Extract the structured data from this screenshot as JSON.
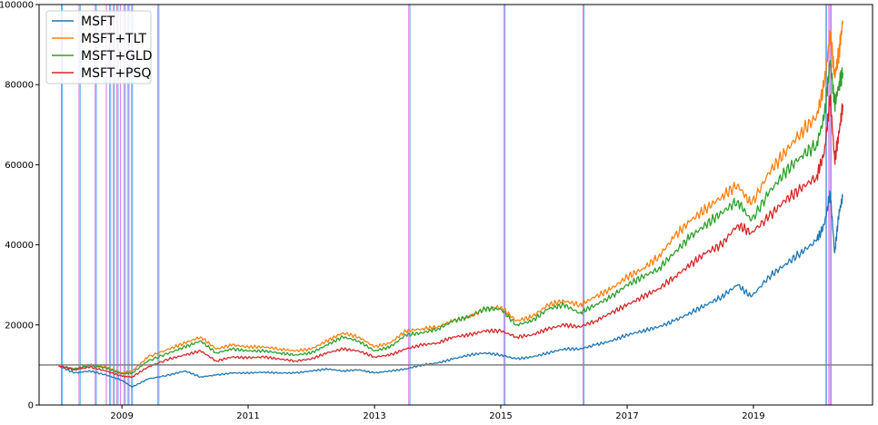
{
  "chart_data": {
    "type": "line",
    "title": "",
    "xlabel": "",
    "ylabel": "",
    "xlim": [
      "2007-09-10",
      "2020-11-20"
    ],
    "ylim": [
      0,
      100000
    ],
    "x_ticks": [
      "2009",
      "2011",
      "2013",
      "2015",
      "2017",
      "2019"
    ],
    "y_ticks": [
      "0",
      "20000",
      "40000",
      "60000",
      "80000",
      "100000"
    ],
    "grid": false,
    "legend_position": "top-left",
    "reference_line": {
      "y": 10000,
      "color": "#808080"
    },
    "vertical_markers": {
      "blue": [
        "2008-01-22",
        "2008-05-05",
        "2008-08-06",
        "2008-10-28",
        "2008-11-18",
        "2008-12-10",
        "2009-01-21",
        "2009-02-11",
        "2009-03-03",
        "2009-08-03",
        "2013-07-25",
        "2015-01-26",
        "2016-04-27",
        "2020-02-28",
        "2020-03-26"
      ],
      "magenta": [
        "2008-01-17",
        "2008-04-28",
        "2008-07-31",
        "2008-10-03",
        "2008-10-22",
        "2008-11-13",
        "2008-12-03",
        "2008-12-23",
        "2009-01-14",
        "2009-02-05",
        "2009-02-26",
        "2009-07-28",
        "2013-07-18",
        "2015-01-20",
        "2016-04-21",
        "2020-02-24",
        "2020-03-12",
        "2020-03-19"
      ],
      "blue_color": "#5ab4f0",
      "magenta_color": "#e070e0"
    },
    "x": [
      "2008-01-01",
      "2008-04-01",
      "2008-07-01",
      "2008-10-01",
      "2009-01-01",
      "2009-03-01",
      "2009-06-01",
      "2009-10-01",
      "2010-01-01",
      "2010-04-01",
      "2010-07-01",
      "2010-10-01",
      "2011-01-01",
      "2011-04-01",
      "2011-07-01",
      "2011-10-01",
      "2012-01-01",
      "2012-04-01",
      "2012-07-01",
      "2012-10-01",
      "2013-01-01",
      "2013-04-01",
      "2013-07-01",
      "2013-10-01",
      "2014-01-01",
      "2014-04-01",
      "2014-07-01",
      "2014-10-01",
      "2015-01-01",
      "2015-04-01",
      "2015-07-01",
      "2015-10-01",
      "2016-01-01",
      "2016-04-01",
      "2016-07-01",
      "2016-10-01",
      "2017-01-01",
      "2017-04-01",
      "2017-07-01",
      "2017-10-01",
      "2018-01-01",
      "2018-04-01",
      "2018-07-01",
      "2018-10-01",
      "2018-12-20",
      "2019-04-01",
      "2019-07-01",
      "2019-10-01",
      "2020-01-01",
      "2020-02-15",
      "2020-03-20",
      "2020-04-15",
      "2020-05-10",
      "2020-06-01"
    ],
    "series": [
      {
        "name": "MSFT",
        "color": "#1f77b4",
        "values": [
          9800,
          8000,
          8500,
          7500,
          6200,
          4500,
          6500,
          7500,
          8500,
          7000,
          7500,
          8000,
          8000,
          8200,
          8000,
          8000,
          8500,
          9000,
          8500,
          8800,
          8000,
          8500,
          9000,
          10000,
          10500,
          11500,
          12500,
          13000,
          12500,
          11500,
          12000,
          13000,
          14000,
          14000,
          15000,
          16000,
          17500,
          18500,
          19500,
          21000,
          23000,
          25000,
          27000,
          30000,
          27000,
          32000,
          35000,
          38000,
          41000,
          45000,
          53000,
          38000,
          48000,
          52000
        ]
      },
      {
        "name": "MSFT+TLT",
        "color": "#ff7f0e",
        "values": [
          9800,
          9000,
          10000,
          9500,
          8000,
          8500,
          12000,
          14000,
          15500,
          17000,
          14000,
          15000,
          14500,
          14500,
          14000,
          13500,
          14000,
          16000,
          18000,
          17000,
          14500,
          15500,
          18500,
          19000,
          19500,
          21000,
          22000,
          24000,
          24500,
          21000,
          22000,
          25000,
          26000,
          25000,
          27000,
          29000,
          32000,
          34000,
          37000,
          42000,
          46000,
          49000,
          52000,
          55000,
          50000,
          58000,
          63000,
          68000,
          72000,
          80000,
          93000,
          82000,
          88000,
          96000
        ]
      },
      {
        "name": "MSFT+GLD",
        "color": "#2ca02c",
        "values": [
          9800,
          9000,
          10000,
          9200,
          7800,
          8000,
          11000,
          13000,
          14500,
          16000,
          13000,
          14000,
          13500,
          13500,
          13000,
          12500,
          13000,
          15000,
          17000,
          16000,
          13500,
          14500,
          17500,
          18000,
          19000,
          21000,
          22000,
          24000,
          24000,
          20000,
          21000,
          24000,
          25000,
          23000,
          25000,
          27000,
          30000,
          32000,
          34000,
          38000,
          42000,
          45000,
          48000,
          51000,
          46000,
          53000,
          58000,
          62000,
          65000,
          72000,
          86000,
          75000,
          80000,
          83000
        ]
      },
      {
        "name": "MSFT+PSQ",
        "color": "#d62728",
        "values": [
          9800,
          8800,
          9500,
          8500,
          7200,
          7000,
          9500,
          11500,
          12500,
          13500,
          11000,
          12000,
          11800,
          12000,
          11500,
          11000,
          11500,
          13000,
          14000,
          13500,
          12000,
          12500,
          14000,
          15000,
          15500,
          17000,
          17500,
          18500,
          18500,
          17000,
          17500,
          19000,
          20000,
          19500,
          21000,
          23000,
          25000,
          27000,
          29000,
          32000,
          35000,
          38000,
          40000,
          45000,
          43000,
          47000,
          51000,
          54000,
          57000,
          63000,
          77000,
          61000,
          68000,
          75000
        ]
      }
    ]
  }
}
